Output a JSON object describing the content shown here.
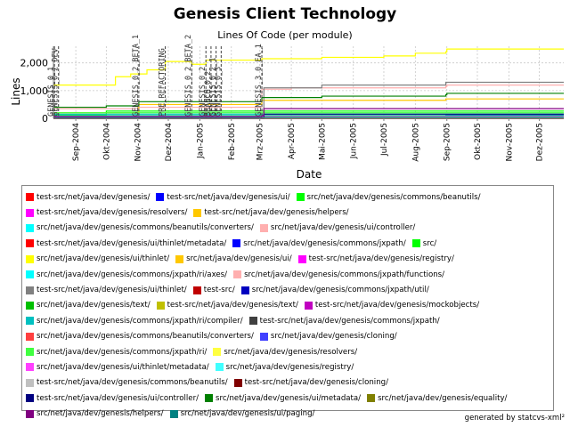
{
  "chart_data": {
    "type": "line",
    "title": "Genesis Client Technology",
    "subtitle": "Lines Of Code (per module)",
    "xlabel": "Date",
    "ylabel": "Lines",
    "x_ticks": [
      "Sep-2004",
      "Okt-2004",
      "Nov-2004",
      "Dez-2004",
      "Jan-2005",
      "Feb-2005",
      "Mrz-2005",
      "Apr-2005",
      "Mai-2005",
      "Jun-2005",
      "Jul-2005",
      "Aug-2005",
      "Sep-2005",
      "Okt-2005",
      "Nov-2005",
      "Dez-2005"
    ],
    "y_ticks": [
      0,
      1000,
      2000
    ],
    "ylim": [
      0,
      2600
    ],
    "x_range": [
      "2004-08-10",
      "2005-12-25"
    ],
    "grid": true,
    "legend_position": "bottom",
    "markers": [
      {
        "date": "2004-08-11",
        "label": "GENESIS_0_1"
      },
      {
        "date": "2004-08-15",
        "label": "GENESIS_0_2_DEV"
      },
      {
        "date": "2004-11-02",
        "label": "GENESIS_0_2_BETA_1"
      },
      {
        "date": "2004-11-28",
        "label": "PRE_REFACTORING"
      },
      {
        "date": "2004-12-24",
        "label": "GENESIS_0_2_BETA_2"
      },
      {
        "date": "2005-01-07",
        "label": "GENESIS_0_2"
      },
      {
        "date": "2005-01-12",
        "label": "BRANCH_0_2"
      },
      {
        "date": "2005-01-17",
        "label": "GENESIS_0_2_1"
      },
      {
        "date": "2005-01-22",
        "label": "GENESIS_0_3"
      },
      {
        "date": "2005-03-03",
        "label": "GENESIS_3_0_EA_1"
      }
    ],
    "series": [
      {
        "name": "test-src/net/java/dev/genesis/",
        "color": "#ff0000",
        "points": [
          [
            "2004-08-10",
            0
          ],
          [
            "2005-12-25",
            0
          ]
        ]
      },
      {
        "name": "test-src/net/java/dev/genesis/ui/",
        "color": "#0000ff",
        "points": [
          [
            "2004-08-10",
            80
          ],
          [
            "2005-08-31",
            110
          ],
          [
            "2005-09-01",
            120
          ],
          [
            "2005-12-25",
            120
          ]
        ]
      },
      {
        "name": "src/net/java/dev/genesis/commons/beanutils/",
        "color": "#00ff00",
        "points": [
          [
            "2004-08-10",
            120
          ],
          [
            "2004-10-01",
            260
          ],
          [
            "2005-12-25",
            260
          ]
        ]
      },
      {
        "name": "test-src/net/java/dev/genesis/resolvers/",
        "color": "#ff00ff",
        "points": [
          [
            "2004-08-10",
            20
          ],
          [
            "2005-12-25",
            20
          ]
        ]
      },
      {
        "name": "test-src/net/java/dev/genesis/helpers/",
        "color": "#ffc800",
        "points": [
          [
            "2004-08-10",
            0
          ],
          [
            "2005-12-25",
            0
          ]
        ]
      },
      {
        "name": "src/net/java/dev/genesis/commons/beanutils/converters/",
        "color": "#00ffff",
        "points": [
          [
            "2004-08-10",
            40
          ],
          [
            "2005-12-25",
            40
          ]
        ]
      },
      {
        "name": "src/net/java/dev/genesis/ui/controller/",
        "color": "#ffafaf",
        "points": [
          [
            "2004-08-10",
            350
          ],
          [
            "2004-11-01",
            400
          ],
          [
            "2005-03-03",
            1050
          ],
          [
            "2005-04-01",
            1100
          ],
          [
            "2005-08-31",
            1150
          ],
          [
            "2005-09-01",
            1200
          ],
          [
            "2005-12-25",
            1200
          ]
        ]
      },
      {
        "name": "test-src/net/java/dev/genesis/ui/thinlet/metadata/",
        "color": "#ff0000",
        "points": [
          [
            "2004-08-10",
            0
          ],
          [
            "2005-12-25",
            0
          ]
        ]
      },
      {
        "name": "src/net/java/dev/genesis/commons/jxpath/",
        "color": "#0000ff",
        "points": [
          [
            "2004-08-10",
            60
          ],
          [
            "2005-12-25",
            60
          ]
        ]
      },
      {
        "name": "src/",
        "color": "#00ff00",
        "points": [
          [
            "2004-08-10",
            10
          ],
          [
            "2005-12-25",
            10
          ]
        ]
      },
      {
        "name": "src/net/java/dev/genesis/ui/thinlet/",
        "color": "#ffff00",
        "points": [
          [
            "2004-08-10",
            1200
          ],
          [
            "2004-09-20",
            1200
          ],
          [
            "2004-10-10",
            1500
          ],
          [
            "2004-10-25",
            1600
          ],
          [
            "2004-11-10",
            1750
          ],
          [
            "2004-11-28",
            2050
          ],
          [
            "2004-12-24",
            1950
          ],
          [
            "2005-01-07",
            2100
          ],
          [
            "2005-03-03",
            2150
          ],
          [
            "2005-05-01",
            2200
          ],
          [
            "2005-07-01",
            2250
          ],
          [
            "2005-08-01",
            2350
          ],
          [
            "2005-08-31",
            2400
          ],
          [
            "2005-09-01",
            2500
          ],
          [
            "2005-12-25",
            2500
          ]
        ]
      },
      {
        "name": "src/net/java/dev/genesis/ui/",
        "color": "#ffc800",
        "points": [
          [
            "2004-08-10",
            200
          ],
          [
            "2004-11-02",
            500
          ],
          [
            "2005-03-03",
            650
          ],
          [
            "2005-08-31",
            700
          ],
          [
            "2005-12-25",
            700
          ]
        ]
      },
      {
        "name": "test-src/net/java/dev/genesis/registry/",
        "color": "#ff00ff",
        "points": [
          [
            "2004-08-10",
            30
          ],
          [
            "2005-12-25",
            30
          ]
        ]
      },
      {
        "name": "src/net/java/dev/genesis/commons/jxpath/ri/axes/",
        "color": "#00ffff",
        "points": [
          [
            "2004-08-10",
            100
          ],
          [
            "2005-12-25",
            100
          ]
        ]
      },
      {
        "name": "src/net/java/dev/genesis/commons/jxpath/functions/",
        "color": "#ffafaf",
        "points": [
          [
            "2004-08-10",
            50
          ],
          [
            "2005-12-25",
            50
          ]
        ]
      },
      {
        "name": "test-src/net/java/dev/genesis/ui/thinlet/",
        "color": "#808080",
        "points": [
          [
            "2004-08-10",
            0
          ],
          [
            "2005-03-03",
            0
          ],
          [
            "2005-03-05",
            1100
          ],
          [
            "2005-05-01",
            1200
          ],
          [
            "2005-08-31",
            1300
          ],
          [
            "2005-12-25",
            1300
          ]
        ]
      },
      {
        "name": "test-src/",
        "color": "#c00000",
        "points": [
          [
            "2004-08-10",
            0
          ],
          [
            "2005-12-25",
            0
          ]
        ]
      },
      {
        "name": "src/net/java/dev/genesis/commons/jxpath/util/",
        "color": "#0000c0",
        "points": [
          [
            "2004-08-10",
            20
          ],
          [
            "2005-12-25",
            20
          ]
        ]
      },
      {
        "name": "src/net/java/dev/genesis/text/",
        "color": "#00c000",
        "points": [
          [
            "2004-08-10",
            90
          ],
          [
            "2005-12-25",
            90
          ]
        ]
      },
      {
        "name": "test-src/net/java/dev/genesis/text/",
        "color": "#c0c000",
        "points": [
          [
            "2004-08-10",
            10
          ],
          [
            "2005-12-25",
            10
          ]
        ]
      },
      {
        "name": "test-src/net/java/dev/genesis/mockobjects/",
        "color": "#c000c0",
        "points": [
          [
            "2004-08-10",
            5
          ],
          [
            "2005-12-25",
            5
          ]
        ]
      },
      {
        "name": "src/net/java/dev/genesis/commons/jxpath/ri/compiler/",
        "color": "#00c0c0",
        "points": [
          [
            "2004-08-10",
            150
          ],
          [
            "2005-12-25",
            150
          ]
        ]
      },
      {
        "name": "test-src/net/java/dev/genesis/commons/jxpath/",
        "color": "#404040",
        "points": [
          [
            "2004-08-10",
            0
          ],
          [
            "2005-12-25",
            0
          ]
        ]
      },
      {
        "name": "src/net/java/dev/genesis/commons/beanutils/converters/",
        "color": "#ff4040",
        "points": [
          [
            "2004-08-10",
            40
          ],
          [
            "2005-12-25",
            40
          ]
        ]
      },
      {
        "name": "src/net/java/dev/genesis/cloning/",
        "color": "#4040ff",
        "points": [
          [
            "2004-08-10",
            70
          ],
          [
            "2005-12-25",
            70
          ]
        ]
      },
      {
        "name": "src/net/java/dev/genesis/commons/jxpath/ri/",
        "color": "#40ff40",
        "points": [
          [
            "2004-08-10",
            200
          ],
          [
            "2005-12-25",
            200
          ]
        ]
      },
      {
        "name": "src/net/java/dev/genesis/resolvers/",
        "color": "#ffff40",
        "points": [
          [
            "2004-08-10",
            30
          ],
          [
            "2005-12-25",
            30
          ]
        ]
      },
      {
        "name": "src/net/java/dev/genesis/ui/thinlet/metadata/",
        "color": "#ff40ff",
        "points": [
          [
            "2004-08-10",
            60
          ],
          [
            "2005-12-25",
            60
          ]
        ]
      },
      {
        "name": "src/net/java/dev/genesis/registry/",
        "color": "#40ffff",
        "points": [
          [
            "2004-08-10",
            40
          ],
          [
            "2005-12-25",
            40
          ]
        ]
      },
      {
        "name": "test-src/net/java/dev/genesis/commons/beanutils/",
        "color": "#c0c0c0",
        "points": [
          [
            "2004-08-10",
            0
          ],
          [
            "2005-12-25",
            0
          ]
        ]
      },
      {
        "name": "test-src/net/java/dev/genesis/cloning/",
        "color": "#800000",
        "points": [
          [
            "2004-08-10",
            0
          ],
          [
            "2005-12-25",
            0
          ]
        ]
      },
      {
        "name": "test-src/net/java/dev/genesis/ui/controller/",
        "color": "#000080",
        "points": [
          [
            "2004-08-10",
            0
          ],
          [
            "2005-03-03",
            0
          ],
          [
            "2005-03-05",
            150
          ],
          [
            "2005-12-25",
            150
          ]
        ]
      },
      {
        "name": "src/net/java/dev/genesis/ui/metadata/",
        "color": "#008000",
        "points": [
          [
            "2004-08-10",
            400
          ],
          [
            "2004-10-01",
            450
          ],
          [
            "2004-11-02",
            600
          ],
          [
            "2005-03-03",
            750
          ],
          [
            "2005-05-01",
            800
          ],
          [
            "2005-08-31",
            850
          ],
          [
            "2005-09-01",
            900
          ],
          [
            "2005-12-25",
            900
          ]
        ]
      },
      {
        "name": "src/net/java/dev/genesis/equality/",
        "color": "#808000",
        "points": [
          [
            "2004-08-10",
            30
          ],
          [
            "2005-12-25",
            30
          ]
        ]
      },
      {
        "name": "src/net/java/dev/genesis/helpers/",
        "color": "#800080",
        "points": [
          [
            "2004-08-10",
            50
          ],
          [
            "2005-03-03",
            100
          ],
          [
            "2005-03-05",
            350
          ],
          [
            "2005-12-25",
            350
          ]
        ]
      },
      {
        "name": "src/net/java/dev/genesis/ui/paging/",
        "color": "#008080",
        "points": [
          [
            "2004-08-10",
            20
          ],
          [
            "2005-12-25",
            20
          ]
        ]
      }
    ],
    "legend_rows": [
      [
        0,
        1,
        2
      ],
      [
        3,
        4
      ],
      [
        5,
        6
      ],
      [
        7,
        8,
        9
      ],
      [
        10,
        11,
        12
      ],
      [
        13,
        14
      ],
      [
        15,
        16,
        17
      ],
      [
        18,
        19,
        20
      ],
      [
        21,
        22
      ],
      [
        23,
        24
      ],
      [
        25,
        26
      ],
      [
        27,
        28
      ],
      [
        29,
        30
      ],
      [
        31,
        32,
        33
      ],
      [
        34,
        35
      ]
    ]
  },
  "footer": "generated by statcvs-xml²"
}
